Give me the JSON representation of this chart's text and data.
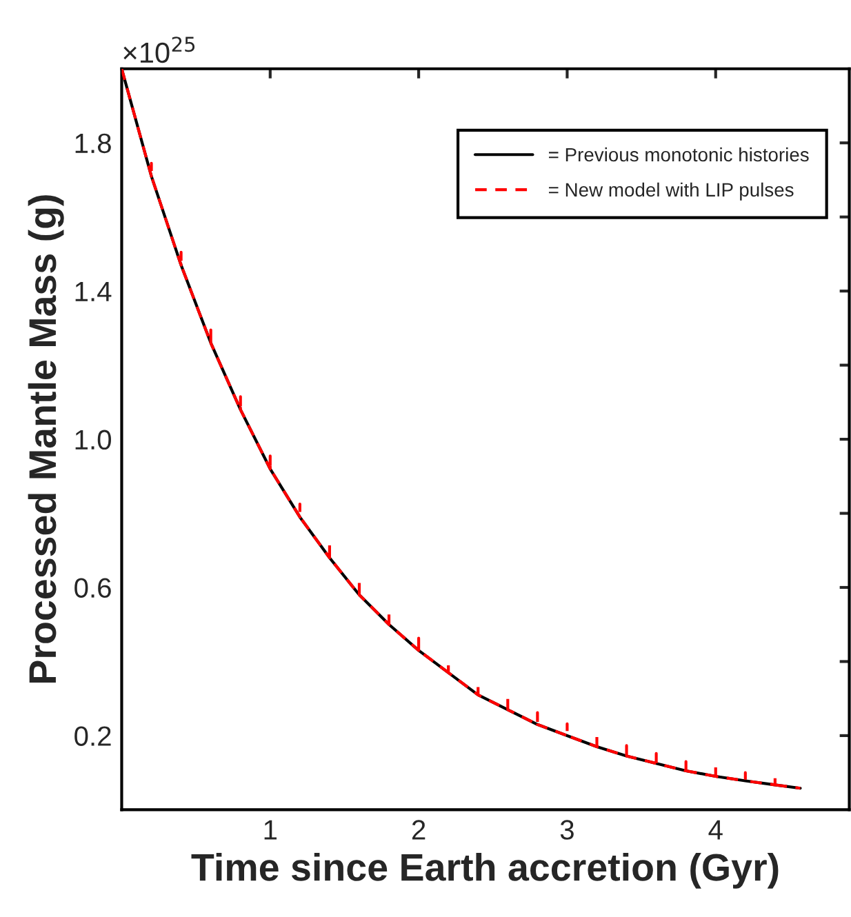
{
  "chart_data": {
    "type": "line",
    "xlabel": "Time since Earth accretion (Gyr)",
    "ylabel": "Processed Mantle Mass (g)",
    "annotations": [
      "×10$^{25}$"
    ],
    "series": [
      {
        "name": "= Previous monotonic histories",
        "color": "#000000",
        "line_style": "solid",
        "x": [
          0,
          0.2,
          0.4,
          0.6,
          0.8,
          1.0,
          1.2,
          1.4,
          1.6,
          1.8,
          2.0,
          2.2,
          2.4,
          2.6,
          2.8,
          3.0,
          3.2,
          3.4,
          3.6,
          3.8,
          4.0,
          4.2,
          4.4,
          4.57
        ],
        "values": [
          2.0,
          1.71,
          1.47,
          1.26,
          1.08,
          0.92,
          0.79,
          0.68,
          0.58,
          0.5,
          0.43,
          0.37,
          0.31,
          0.27,
          0.23,
          0.2,
          0.17,
          0.145,
          0.125,
          0.105,
          0.09,
          0.078,
          0.067,
          0.058
        ]
      },
      {
        "name": "= New model with LIP pulses",
        "color": "#ff0000",
        "line_style": "dashed",
        "x": [
          0,
          0.2,
          0.2,
          0.2,
          0.4,
          0.4,
          0.4,
          0.6,
          0.6,
          0.6,
          0.8,
          0.8,
          0.8,
          1.0,
          1.0,
          1.0,
          1.2,
          1.2,
          1.2,
          1.4,
          1.4,
          1.4,
          1.6,
          1.6,
          1.6,
          1.8,
          1.8,
          1.8,
          2.0,
          2.0,
          2.0,
          2.2,
          2.2,
          2.2,
          2.4,
          2.4,
          2.4,
          2.6,
          2.6,
          2.6,
          2.8,
          2.8,
          2.8,
          3.0,
          3.0,
          3.0,
          3.2,
          3.2,
          3.2,
          3.4,
          3.4,
          3.4,
          3.6,
          3.6,
          3.6,
          3.8,
          3.8,
          3.8,
          4.0,
          4.0,
          4.0,
          4.2,
          4.2,
          4.2,
          4.4,
          4.4,
          4.4,
          4.57
        ],
        "values": [
          2.0,
          1.71,
          1.745,
          1.71,
          1.47,
          1.505,
          1.47,
          1.26,
          1.295,
          1.26,
          1.08,
          1.115,
          1.08,
          0.92,
          0.955,
          0.92,
          0.79,
          0.825,
          0.79,
          0.68,
          0.715,
          0.68,
          0.58,
          0.613,
          0.58,
          0.5,
          0.533,
          0.5,
          0.43,
          0.463,
          0.43,
          0.37,
          0.393,
          0.37,
          0.31,
          0.342,
          0.31,
          0.27,
          0.302,
          0.27,
          0.23,
          0.262,
          0.23,
          0.2,
          0.232,
          0.2,
          0.17,
          0.2,
          0.17,
          0.145,
          0.173,
          0.145,
          0.125,
          0.152,
          0.125,
          0.105,
          0.13,
          0.105,
          0.09,
          0.115,
          0.09,
          0.078,
          0.1,
          0.078,
          0.067,
          0.087,
          0.067,
          0.058
        ]
      }
    ],
    "xlim": [
      0,
      4.9
    ],
    "xticks": [
      1,
      2,
      3,
      4
    ],
    "ylim": [
      0,
      2.0
    ],
    "yticks": [
      {
        "value": 0.2,
        "label": "0.2"
      },
      {
        "value": 0.4,
        "label": null
      },
      {
        "value": 0.6,
        "label": "0.6"
      },
      {
        "value": 0.8,
        "label": null
      },
      {
        "value": 1.0,
        "label": "1.0"
      },
      {
        "value": 1.2,
        "label": null
      },
      {
        "value": 1.4,
        "label": "1.4"
      },
      {
        "value": 1.6,
        "label": null
      },
      {
        "value": 1.8,
        "label": "1.8"
      }
    ],
    "grid": false,
    "legend": "top right"
  }
}
